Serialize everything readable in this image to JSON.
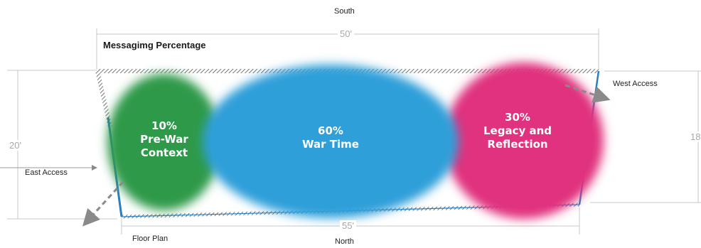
{
  "compass": {
    "top": "South",
    "bottom": "North"
  },
  "title": "Messagimg Percentage",
  "caption": "Floor Plan",
  "dimensions": {
    "top_width": "50'",
    "bottom_width": "55'",
    "left_depth": "20'",
    "right_depth": "18"
  },
  "access": {
    "east": "East Access",
    "west": "West Access"
  },
  "zones": [
    {
      "percent": "10%",
      "line1": "Pre-War",
      "line2": "Context",
      "color": "#2e9a4a"
    },
    {
      "percent": "60%",
      "line1": "War Time",
      "line2": "",
      "color": "#2e9fd9"
    },
    {
      "percent": "30%",
      "line1": "Legacy and",
      "line2": "Reflection",
      "color": "#e0337e"
    }
  ]
}
